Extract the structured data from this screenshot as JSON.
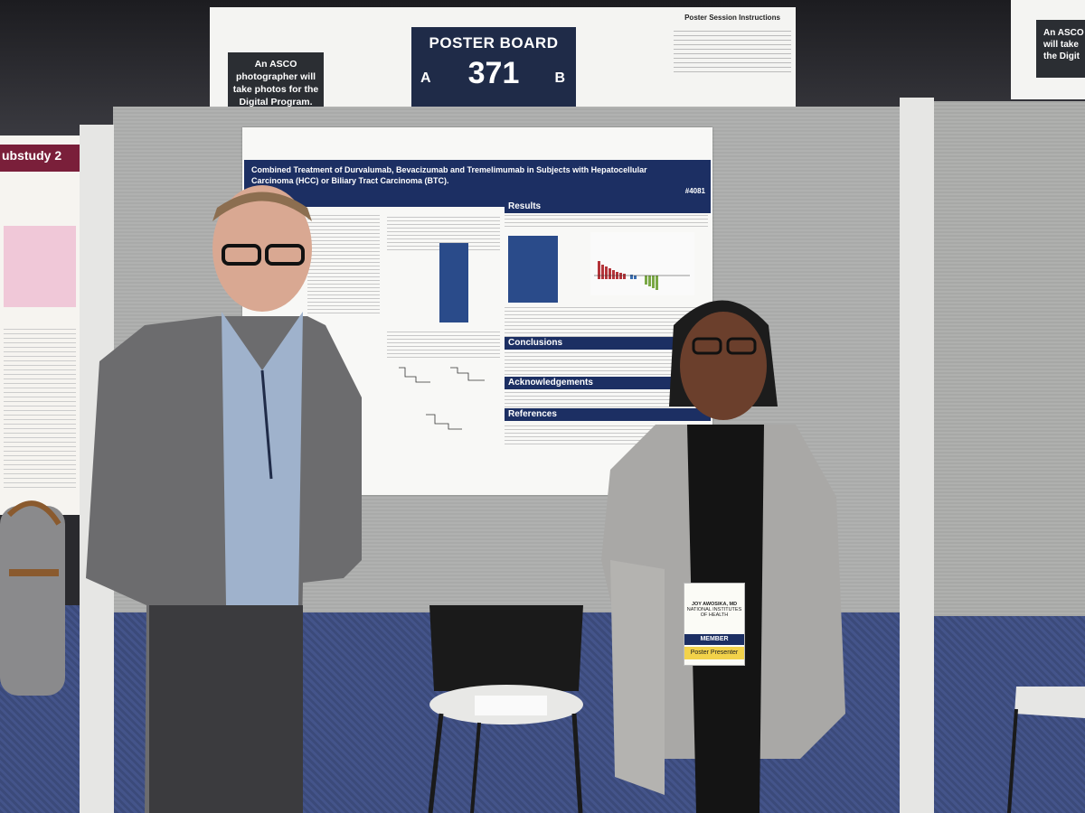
{
  "header": {
    "photographer_note": "An ASCO photographer will take photos for the Digital Program.",
    "board_title": "POSTER BOARD",
    "board_number": "371",
    "side_a": "A",
    "side_b": "B",
    "instructions_title": "Poster Session Instructions",
    "right_sign_text": "An ASCO will take the Digit"
  },
  "left_poster": {
    "title_fragment": "ubstudy 2"
  },
  "poster": {
    "title": "Combined Treatment of Durvalumab, Bevacizumab and Tremelimumab in Subjects with Hepatocellular Carcinoma (HCC) or Biliary Tract Carcinoma (BTC).",
    "number": "#4081",
    "sections": {
      "results": "Results",
      "conclusions": "Conclusions",
      "acknowledgements": "Acknowledgements",
      "references": "References"
    }
  },
  "badge": {
    "name": "JOY AWOSIKA, MD",
    "org": "NATIONAL INSTITUTES OF HEALTH",
    "member": "MEMBER",
    "role": "Poster Presenter"
  },
  "colors": {
    "poster_navy": "#1c2f63",
    "board_navy": "#1f2b48",
    "felt_gray": "#a9aaa9",
    "carpet_blue": "#3b4a7a"
  }
}
